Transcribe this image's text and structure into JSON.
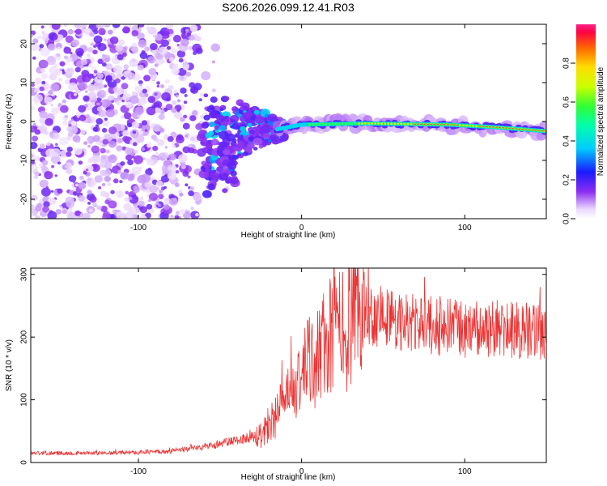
{
  "title": "S206.2026.099.12.41.R03",
  "chart_data": [
    {
      "type": "heatmap",
      "name": "spectrogram",
      "xlabel": "Height of straight line (km)",
      "ylabel": "Frequency (Hz)",
      "xlim": [
        -166,
        150
      ],
      "ylim": [
        -25,
        25
      ],
      "xticks": [
        -100,
        0,
        100
      ],
      "xtick_labels": [
        "-100",
        "0",
        "100"
      ],
      "yticks": [
        -20,
        -10,
        0,
        10,
        20
      ],
      "ytick_labels": [
        "-20",
        "-10",
        "0",
        "10",
        "20"
      ],
      "colorbar": {
        "label": "Normalized spectral amplitude",
        "range": [
          0,
          1
        ],
        "ticks": [
          0.0,
          0.2,
          0.4,
          0.6,
          0.8
        ],
        "tick_labels": [
          "0.0",
          "0.2",
          "0.4",
          "0.6",
          "0.8"
        ]
      },
      "features": [
        {
          "description": "diffuse low-amplitude noise",
          "x_range": [
            -166,
            -60
          ],
          "freq_range": [
            -25,
            25
          ],
          "amplitude": 0.1
        },
        {
          "description": "transition cluster",
          "x_range": [
            -60,
            -10
          ],
          "freq_range": [
            -12,
            6
          ],
          "amplitude": 0.25
        },
        {
          "description": "narrow tone ridge",
          "x_range": [
            -15,
            150
          ],
          "freq_center": [
            -2,
            -0.8,
            -0.5,
            -0.8,
            -1.5,
            -2.5
          ],
          "freq_center_x": [
            -15,
            0,
            40,
            90,
            120,
            150
          ],
          "amplitude": 0.85
        }
      ]
    },
    {
      "type": "line",
      "name": "snr",
      "xlabel": "Height of straight line (km)",
      "ylabel": "SNR (10 * v/v)",
      "xlim": [
        -166,
        150
      ],
      "ylim": [
        0,
        310
      ],
      "xticks": [
        -100,
        0,
        100
      ],
      "xtick_labels": [
        "-100",
        "0",
        "100"
      ],
      "yticks": [
        0,
        100,
        200,
        300
      ],
      "ytick_labels": [
        "0",
        "100",
        "200",
        "300"
      ],
      "color": "#ee3333",
      "trend": {
        "x": [
          -166,
          -120,
          -80,
          -60,
          -40,
          -25,
          -15,
          -5,
          0,
          10,
          20,
          30,
          40,
          50,
          60,
          80,
          100,
          120,
          150
        ],
        "y": [
          15,
          15,
          18,
          25,
          35,
          45,
          80,
          110,
          140,
          175,
          205,
          225,
          235,
          235,
          225,
          218,
          213,
          210,
          210
        ]
      },
      "noise_amplitude_pct": 0.22
    }
  ]
}
